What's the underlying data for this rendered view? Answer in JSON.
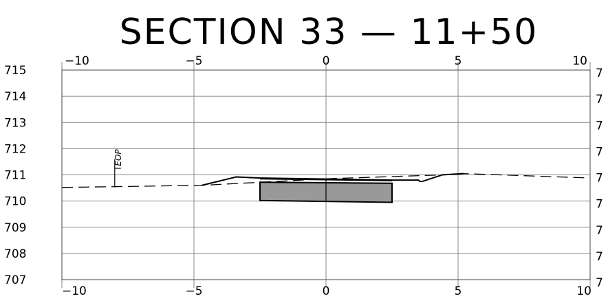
{
  "title": "SECTION 33 — 11+50",
  "chart_data": {
    "type": "line",
    "title": "SECTION 33 — 11+50",
    "xlim": [
      -10,
      10
    ],
    "ylim": [
      707,
      715
    ],
    "x_ticks": [
      -10,
      -5,
      0,
      5,
      10
    ],
    "x_tick_labels_top": [
      "−10",
      "−5",
      "0",
      "5",
      "10"
    ],
    "x_tick_labels_bottom": [
      "−10",
      "−5",
      "0",
      "5",
      "10"
    ],
    "y_ticks": [
      715,
      714,
      713,
      712,
      711,
      710,
      709,
      708,
      707
    ],
    "y_tick_labels": [
      "715",
      "714",
      "713",
      "712",
      "711",
      "710",
      "709",
      "708",
      "707"
    ],
    "y_tick_labels_right": [
      "7",
      "7",
      "7",
      "7",
      "7",
      "7",
      "7",
      "7",
      "7"
    ],
    "grid": true,
    "series": [
      {
        "style": "dashed",
        "points": [
          [
            -10,
            710.52
          ],
          [
            -4.7,
            710.6
          ],
          [
            0,
            710.85
          ],
          [
            4.4,
            711.0
          ],
          [
            5.2,
            711.05
          ],
          [
            10,
            710.88
          ]
        ]
      },
      {
        "style": "solid",
        "points": [
          [
            -4.7,
            710.6
          ],
          [
            -3.4,
            710.92
          ],
          [
            -2.5,
            710.88
          ],
          [
            2.5,
            710.8
          ],
          [
            3.5,
            710.8
          ],
          [
            3.55,
            710.75
          ],
          [
            3.65,
            710.75
          ],
          [
            4.4,
            711.0
          ],
          [
            5.2,
            711.05
          ]
        ]
      }
    ],
    "structure": {
      "color": "#999999",
      "points": [
        [
          -2.5,
          710.72
        ],
        [
          2.5,
          710.68
        ],
        [
          2.5,
          709.95
        ],
        [
          -2.5,
          710.02
        ]
      ],
      "top_line": [
        [
          -2.5,
          710.85
        ],
        [
          2.5,
          710.78
        ]
      ],
      "divider_x": 0
    },
    "annotations": [
      {
        "text": "EOP",
        "x": -8.0,
        "y": 710.52,
        "leader_top": 711.6
      }
    ]
  }
}
